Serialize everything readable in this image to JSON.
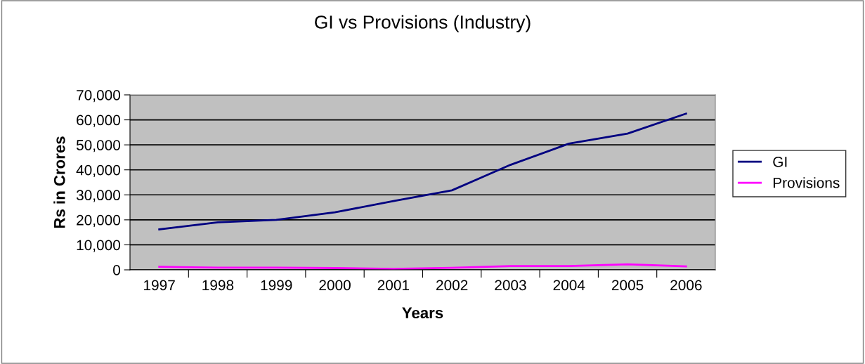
{
  "chart_data": {
    "type": "line",
    "title": "GI vs Provisions (Industry)",
    "xlabel": "Years",
    "ylabel": "Rs in Crores",
    "categories": [
      "1997",
      "1998",
      "1999",
      "2000",
      "2001",
      "2002",
      "2003",
      "2004",
      "2005",
      "2006"
    ],
    "series": [
      {
        "name": "GI",
        "color": "#000080",
        "values": [
          16200,
          19000,
          20000,
          23000,
          27500,
          31800,
          42000,
          50500,
          54500,
          62500
        ]
      },
      {
        "name": "Provisions",
        "color": "#ff00ff",
        "values": [
          1200,
          900,
          900,
          700,
          400,
          800,
          1500,
          1500,
          2200,
          1400
        ]
      }
    ],
    "ylim": [
      0,
      70000
    ],
    "yticks": [
      {
        "value": 0,
        "label": "0"
      },
      {
        "value": 10000,
        "label": "10,000"
      },
      {
        "value": 20000,
        "label": "20,000"
      },
      {
        "value": 30000,
        "label": "30,000"
      },
      {
        "value": 40000,
        "label": "40,000"
      },
      {
        "value": 50000,
        "label": "50,000"
      },
      {
        "value": 60000,
        "label": "60,000"
      },
      {
        "value": 70000,
        "label": "70,000"
      }
    ],
    "grid": "y",
    "legend": "right",
    "marker": "none",
    "line_style": "solid"
  }
}
